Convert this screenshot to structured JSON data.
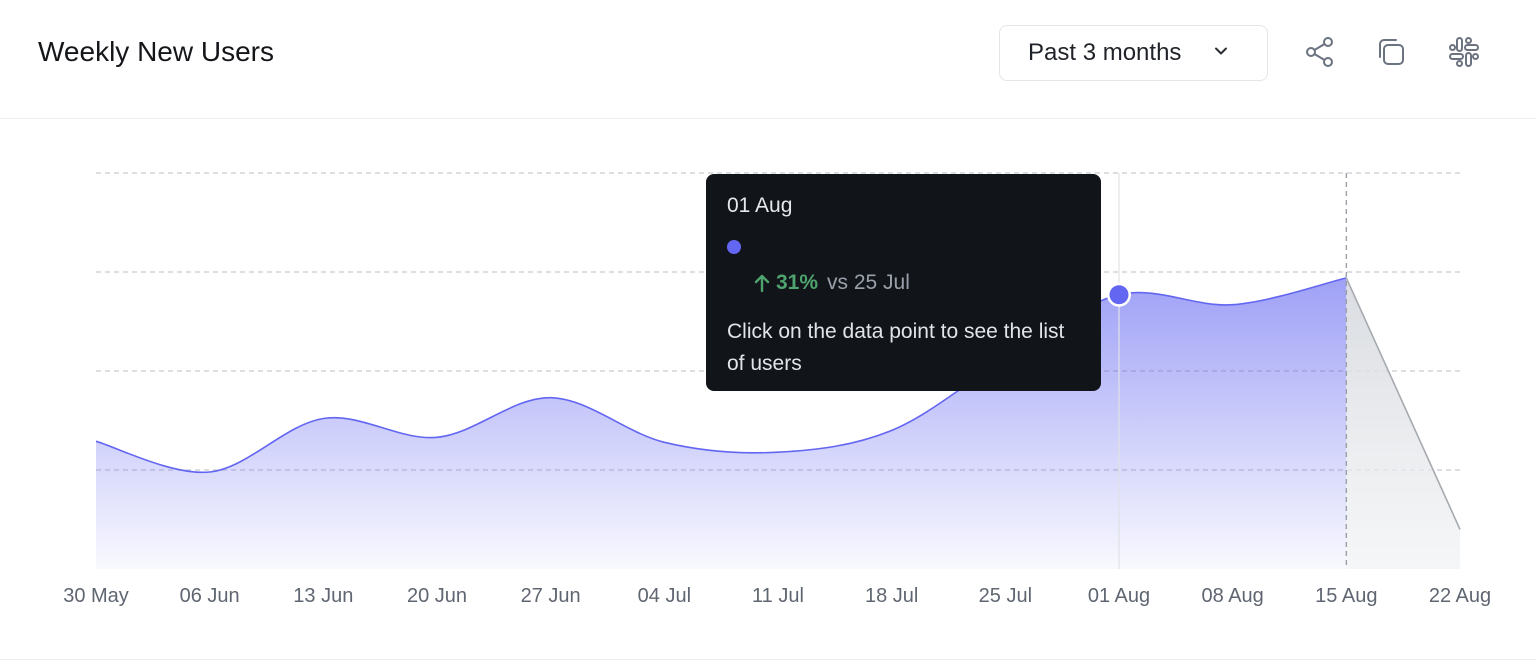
{
  "header": {
    "title": "Weekly New Users",
    "range_label": "Past 3 months",
    "icons": [
      "share-icon",
      "copy-icon",
      "slack-icon"
    ]
  },
  "tooltip": {
    "date": "01 Aug",
    "series_color": "#6366f1",
    "change": "31%",
    "change_direction": "up",
    "compare_text": "vs 25 Jul",
    "hint": "Click on the data point to see the list of users"
  },
  "colors": {
    "accent": "#6366f1",
    "positive": "#4fa36f",
    "projection": "#a6aab0",
    "tooltip_bg": "#111419"
  },
  "chart_data": {
    "type": "area",
    "x": [
      "30 May",
      "06 Jun",
      "13 Jun",
      "20 Jun",
      "27 Jun",
      "04 Jul",
      "11 Jul",
      "18 Jul",
      "25 Jul",
      "01 Aug",
      "08 Aug",
      "15 Aug",
      "22 Aug"
    ],
    "series": [
      {
        "values": [
          1.29,
          0.98,
          1.52,
          1.33,
          1.73,
          1.28,
          1.18,
          1.4,
          2.12,
          2.77,
          2.67,
          2.94,
          0.4
        ]
      }
    ],
    "projected_from": "15 Aug",
    "highlighted_point": "01 Aug",
    "ylim": [
      0,
      4
    ],
    "y_gridlines": [
      1,
      2,
      3,
      4
    ],
    "grid": true,
    "y_tick_labels": false,
    "xlabel": "",
    "ylabel": ""
  }
}
